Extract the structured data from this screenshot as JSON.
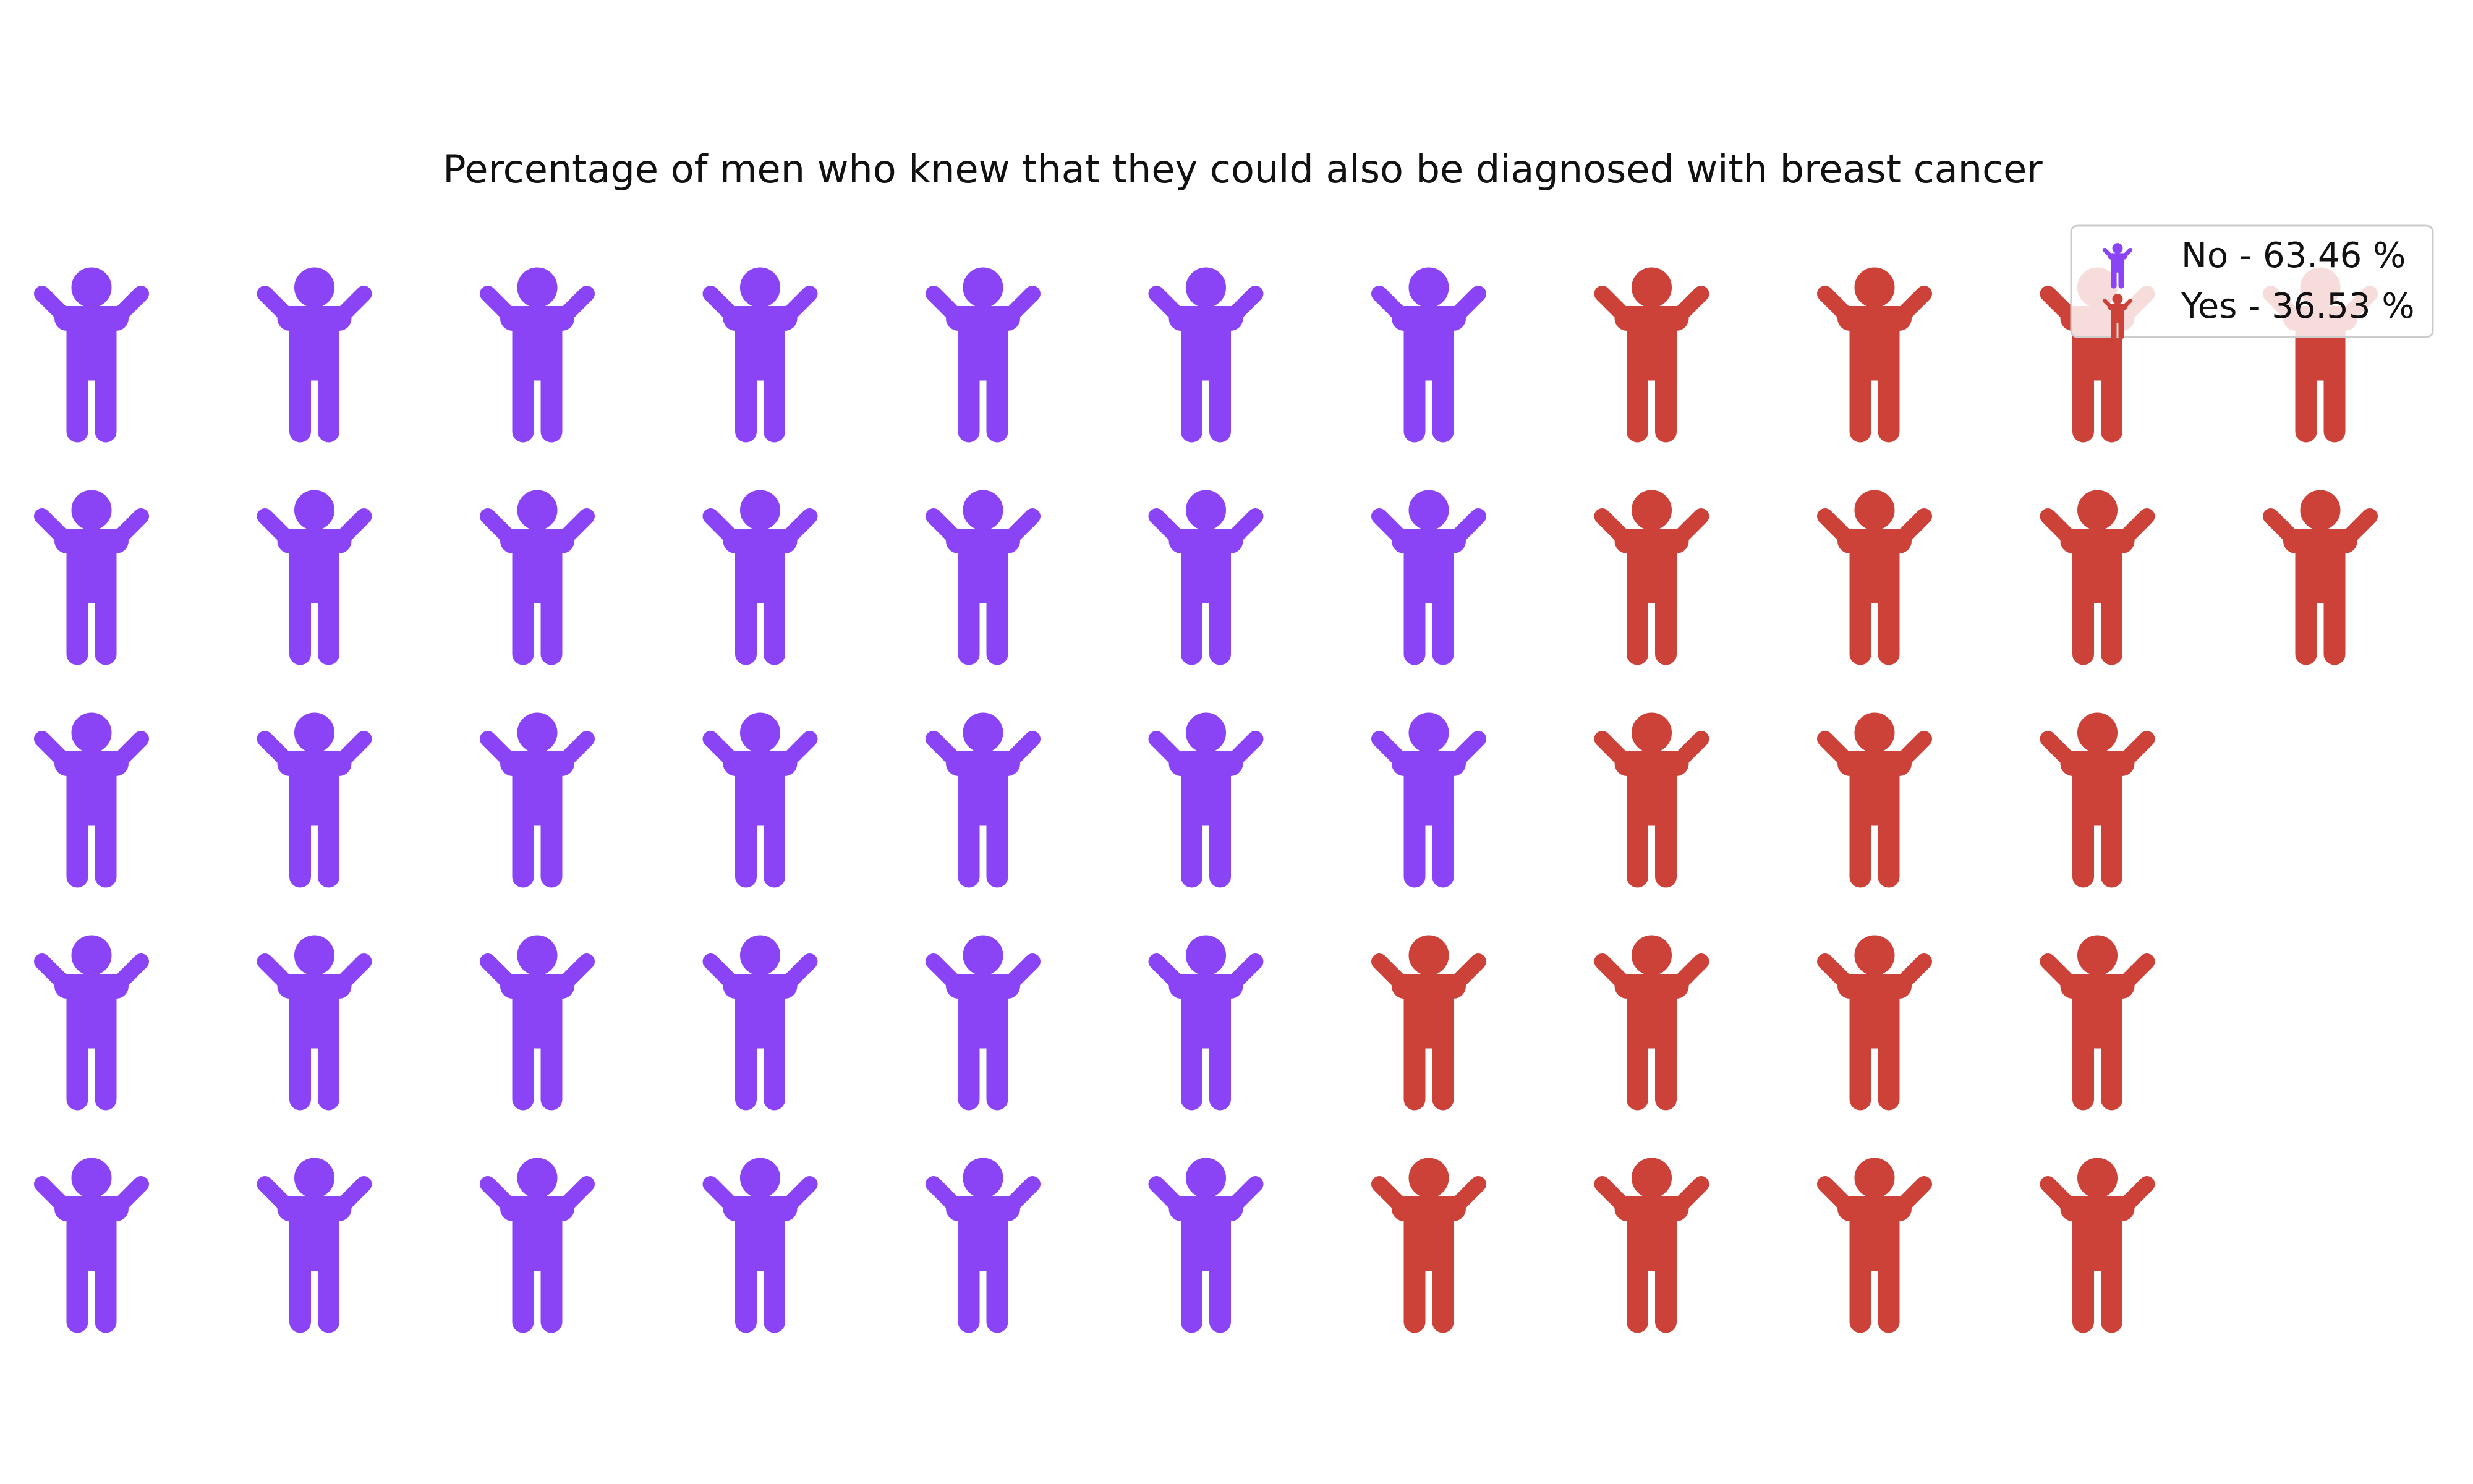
{
  "chart_data": {
    "type": "waffle",
    "title": "Percentage of men who knew that they could also be diagnosed with breast cancer",
    "icon": "person-arms-raised-icon",
    "rows": 5,
    "columns": 11,
    "fill_order": "column-wise, top to bottom",
    "series": [
      {
        "name": "No",
        "percent": 63.46,
        "count": 33,
        "color": "#8a44f5",
        "legend_label": "No - 63.46 %"
      },
      {
        "name": "Yes",
        "percent": 36.53,
        "count": 19,
        "color": "#cc4238",
        "legend_label": "Yes - 36.53 %"
      }
    ],
    "legend_position": "top-right",
    "grid": false,
    "axes": false
  }
}
